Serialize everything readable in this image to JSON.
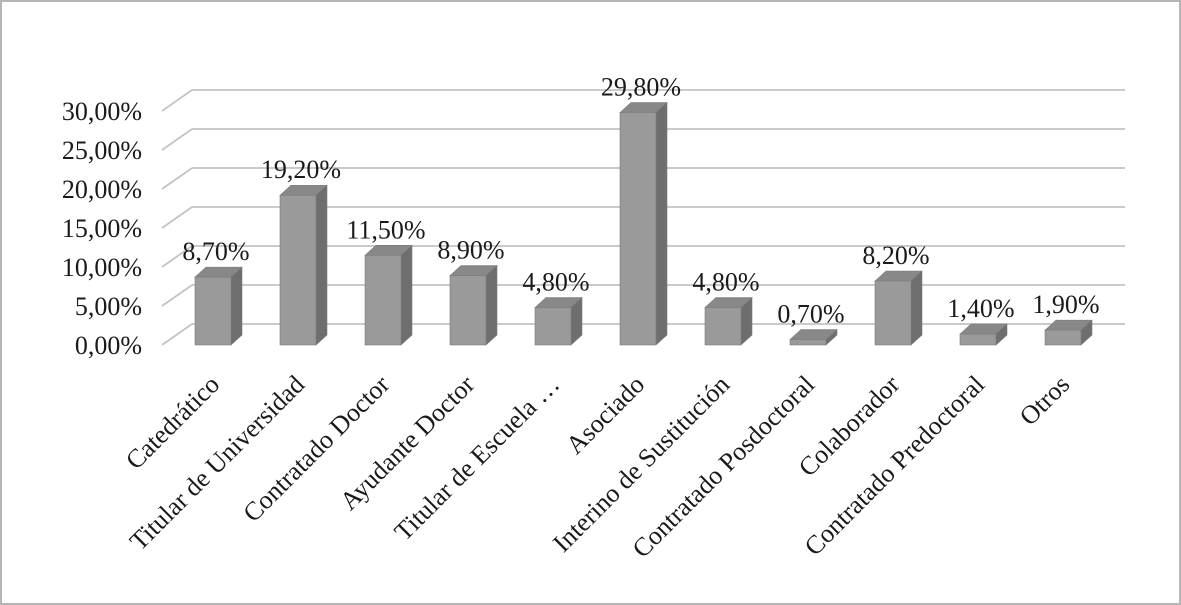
{
  "chart_data": {
    "type": "bar",
    "style": "3d-column",
    "title": "",
    "xlabel": "",
    "ylabel": "",
    "grid": true,
    "legend": false,
    "ylim": [
      0,
      30
    ],
    "categories": [
      "Catedrático",
      "Titular de Universidad",
      "Contratado Doctor",
      "Ayudante Doctor",
      "Titular de Escuela …",
      "Asociado",
      "Interino de Sustitución",
      "Contratado Posdoctoral",
      "Colaborador",
      "Contratado Predoctoral",
      "Otros"
    ],
    "values": [
      8.7,
      19.2,
      11.5,
      8.9,
      4.8,
      29.8,
      4.8,
      0.7,
      8.2,
      1.4,
      1.9
    ],
    "value_labels": [
      "8,70%",
      "19,20%",
      "11,50%",
      "8,90%",
      "4,80%",
      "29,80%",
      "4,80%",
      "0,70%",
      "8,20%",
      "1,40%",
      "1,90%"
    ],
    "y_ticks": [
      {
        "label": "30,00%",
        "value": 30
      },
      {
        "label": "25,00%",
        "value": 25
      },
      {
        "label": "20,00%",
        "value": 20
      },
      {
        "label": "15,00%",
        "value": 15
      },
      {
        "label": "10,00%",
        "value": 10
      },
      {
        "label": "5,00%",
        "value": 5
      },
      {
        "label": "0,00%",
        "value": 0
      }
    ],
    "colors": {
      "bar_front": "#9a9a9a",
      "bar_top": "#888888",
      "bar_side": "#6e6e6e",
      "bar_edge": "#7c7c7c",
      "gridline": "#c3c3c3",
      "text": "#1a1a1a",
      "frame_border": "#b5b5b5"
    }
  }
}
